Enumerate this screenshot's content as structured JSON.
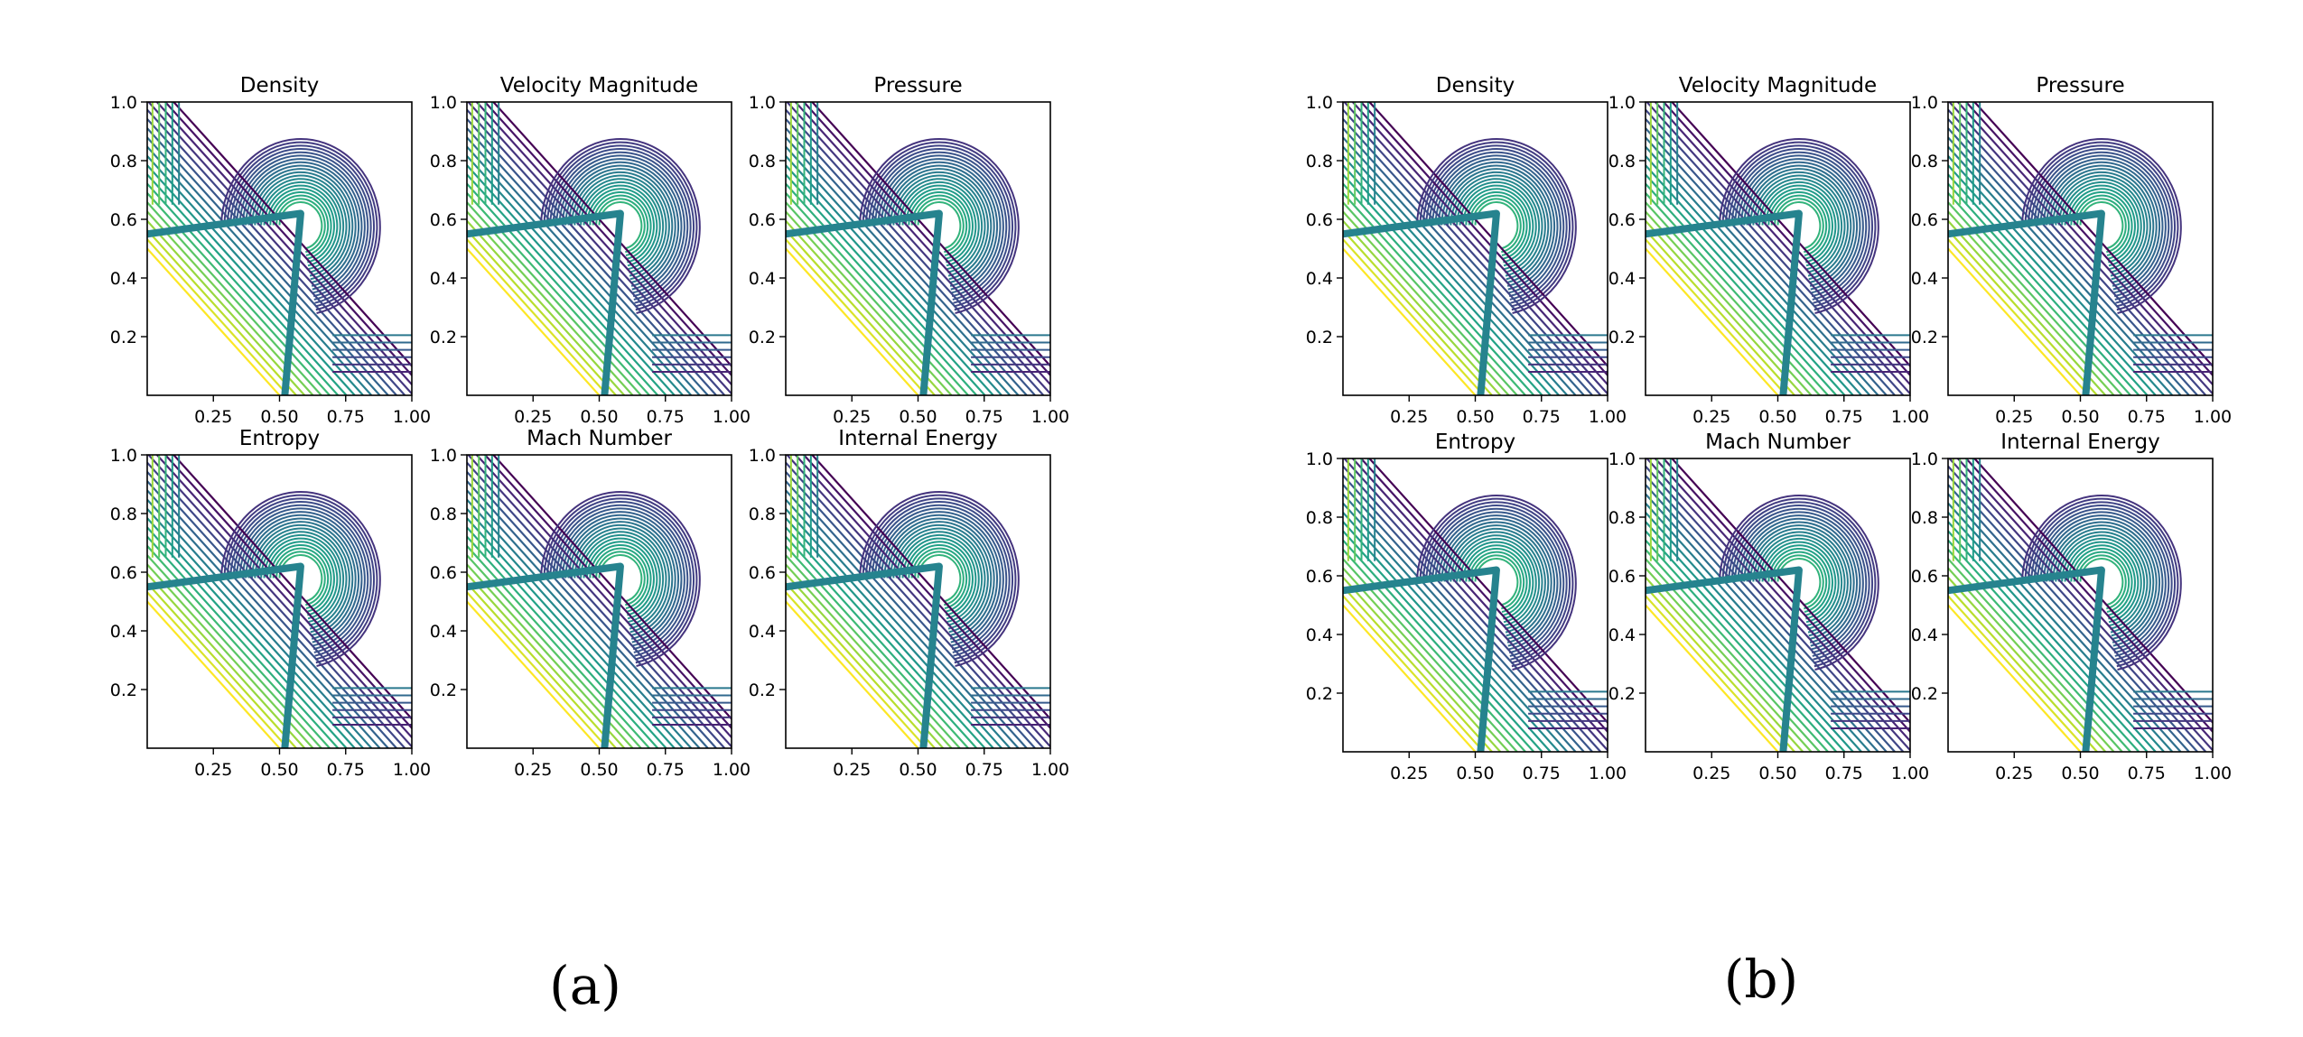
{
  "figure": {
    "captions": [
      "(a)",
      "(b)"
    ]
  },
  "chart_data": [
    {
      "group": "(a)",
      "type": "contour",
      "title": "Density",
      "xticks": [
        "0.25",
        "0.50",
        "0.75",
        "1.00"
      ],
      "yticks": [
        "0.2",
        "0.4",
        "0.6",
        "0.8",
        "1.0"
      ],
      "xlim": [
        0,
        1
      ],
      "ylim": [
        0,
        1
      ],
      "colormap": "viridis",
      "levels": 20
    },
    {
      "group": "(a)",
      "type": "contour",
      "title": "Velocity Magnitude",
      "xticks": [
        "0.25",
        "0.50",
        "0.75",
        "1.00"
      ],
      "yticks": [
        "0.2",
        "0.4",
        "0.6",
        "0.8",
        "1.0"
      ],
      "xlim": [
        0,
        1
      ],
      "ylim": [
        0,
        1
      ],
      "colormap": "viridis",
      "levels": 20
    },
    {
      "group": "(a)",
      "type": "contour",
      "title": "Pressure",
      "xticks": [
        "0.25",
        "0.50",
        "0.75",
        "1.00"
      ],
      "yticks": [
        "0.2",
        "0.4",
        "0.6",
        "0.8",
        "1.0"
      ],
      "xlim": [
        0,
        1
      ],
      "ylim": [
        0,
        1
      ],
      "colormap": "viridis",
      "levels": 20
    },
    {
      "group": "(a)",
      "type": "contour",
      "title": "Entropy",
      "xticks": [
        "0.25",
        "0.50",
        "0.75",
        "1.00"
      ],
      "yticks": [
        "0.2",
        "0.4",
        "0.6",
        "0.8",
        "1.0"
      ],
      "xlim": [
        0,
        1
      ],
      "ylim": [
        0,
        1
      ],
      "colormap": "viridis",
      "levels": 20
    },
    {
      "group": "(a)",
      "type": "contour",
      "title": "Mach Number",
      "xticks": [
        "0.25",
        "0.50",
        "0.75",
        "1.00"
      ],
      "yticks": [
        "0.2",
        "0.4",
        "0.6",
        "0.8",
        "1.0"
      ],
      "xlim": [
        0,
        1
      ],
      "ylim": [
        0,
        1
      ],
      "colormap": "viridis",
      "levels": 20
    },
    {
      "group": "(a)",
      "type": "contour",
      "title": "Internal Energy",
      "xticks": [
        "0.25",
        "0.50",
        "0.75",
        "1.00"
      ],
      "yticks": [
        "0.2",
        "0.4",
        "0.6",
        "0.8",
        "1.0"
      ],
      "xlim": [
        0,
        1
      ],
      "ylim": [
        0,
        1
      ],
      "colormap": "viridis",
      "levels": 20
    },
    {
      "group": "(b)",
      "type": "contour",
      "title": "Density",
      "xticks": [
        "0.25",
        "0.50",
        "0.75",
        "1.00"
      ],
      "yticks": [
        "0.2",
        "0.4",
        "0.6",
        "0.8",
        "1.0"
      ],
      "xlim": [
        0,
        1
      ],
      "ylim": [
        0,
        1
      ],
      "colormap": "viridis",
      "levels": 20
    },
    {
      "group": "(b)",
      "type": "contour",
      "title": "Velocity Magnitude",
      "xticks": [
        "0.25",
        "0.50",
        "0.75",
        "1.00"
      ],
      "yticks": [
        "0.2",
        "0.4",
        "0.6",
        "0.8",
        "1.0"
      ],
      "xlim": [
        0,
        1
      ],
      "ylim": [
        0,
        1
      ],
      "colormap": "viridis",
      "levels": 20
    },
    {
      "group": "(b)",
      "type": "contour",
      "title": "Pressure",
      "xticks": [
        "0.25",
        "0.50",
        "0.75",
        "1.00"
      ],
      "yticks": [
        "0.2",
        "0.4",
        "0.6",
        "0.8",
        "1.0"
      ],
      "xlim": [
        0,
        1
      ],
      "ylim": [
        0,
        1
      ],
      "colormap": "viridis",
      "levels": 20
    },
    {
      "group": "(b)",
      "type": "contour",
      "title": "Entropy",
      "xticks": [
        "0.25",
        "0.50",
        "0.75",
        "1.00"
      ],
      "yticks": [
        "0.2",
        "0.4",
        "0.6",
        "0.8",
        "1.0"
      ],
      "xlim": [
        0,
        1
      ],
      "ylim": [
        0,
        1
      ],
      "colormap": "viridis",
      "levels": 20
    },
    {
      "group": "(b)",
      "type": "contour",
      "title": "Mach Number",
      "xticks": [
        "0.25",
        "0.50",
        "0.75",
        "1.00"
      ],
      "yticks": [
        "0.2",
        "0.4",
        "0.6",
        "0.8",
        "1.0"
      ],
      "xlim": [
        0,
        1
      ],
      "ylim": [
        0,
        1
      ],
      "colormap": "viridis",
      "levels": 20
    },
    {
      "group": "(b)",
      "type": "contour",
      "title": "Internal Energy",
      "xticks": [
        "0.25",
        "0.50",
        "0.75",
        "1.00"
      ],
      "yticks": [
        "0.2",
        "0.4",
        "0.6",
        "0.8",
        "1.0"
      ],
      "xlim": [
        0,
        1
      ],
      "ylim": [
        0,
        1
      ],
      "colormap": "viridis",
      "levels": 20
    }
  ]
}
